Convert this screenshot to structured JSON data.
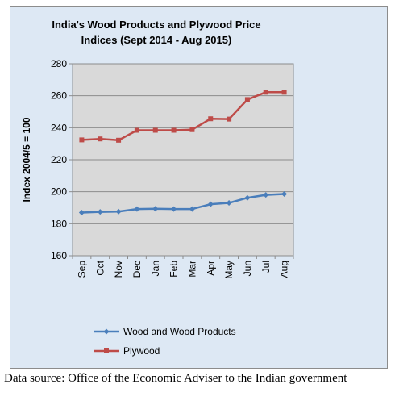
{
  "source_note": "Data source: Office of the Economic Adviser to the Indian government",
  "chart_data": {
    "type": "line",
    "title_lines": [
      "India's Wood Products and Plywood Price",
      "Indices (Sept 2014 - Aug 2015)"
    ],
    "xlabel": "",
    "ylabel": "Index 2004/5 = 100",
    "categories": [
      "Sep",
      "Oct",
      "Nov",
      "Dec",
      "Jan",
      "Feb",
      "Mar",
      "Apr",
      "May",
      "Jun",
      "Jul",
      "Aug"
    ],
    "ylim": [
      160,
      280
    ],
    "yticks": [
      160,
      180,
      200,
      220,
      240,
      260,
      280
    ],
    "grid": true,
    "legend_position": "bottom",
    "plot_background": "#d9d9d9",
    "series": [
      {
        "name": "Wood and Wood Products",
        "color": "#4a7ebb",
        "values": [
          187.0,
          187.4,
          187.6,
          189.2,
          189.4,
          189.2,
          189.2,
          192.2,
          193.0,
          196.2,
          198.0,
          198.6
        ]
      },
      {
        "name": "Plywood",
        "color": "#be4b48",
        "values": [
          232.4,
          233.0,
          232.2,
          238.4,
          238.4,
          238.4,
          238.8,
          245.6,
          245.4,
          257.6,
          262.2,
          262.2
        ]
      }
    ]
  }
}
